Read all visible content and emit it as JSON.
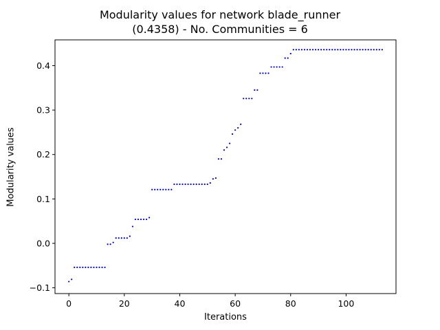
{
  "chart_data": {
    "type": "scatter",
    "title": "Modularity values for network blade_runner",
    "subtitle": "(0.4358) - No. Communities = 6",
    "xlabel": "Iterations",
    "ylabel": "Modularity values",
    "xlim": [
      -5,
      118
    ],
    "ylim": [
      -0.113,
      0.458
    ],
    "xticks": [
      0,
      20,
      40,
      60,
      80,
      100
    ],
    "yticks": [
      -0.1,
      0.0,
      0.1,
      0.2,
      0.3,
      0.4
    ],
    "ytick_labels": [
      "−0.1",
      "0.0",
      "0.1",
      "0.2",
      "0.3",
      "0.4"
    ],
    "grid": false,
    "marker_color": "#0000cc",
    "x": [
      0,
      1,
      2,
      3,
      4,
      5,
      6,
      7,
      8,
      9,
      10,
      11,
      12,
      13,
      14,
      15,
      16,
      17,
      18,
      19,
      20,
      21,
      22,
      23,
      24,
      25,
      26,
      27,
      28,
      29,
      30,
      31,
      32,
      33,
      34,
      35,
      36,
      37,
      38,
      39,
      40,
      41,
      42,
      43,
      44,
      45,
      46,
      47,
      48,
      49,
      50,
      51,
      52,
      53,
      54,
      55,
      56,
      57,
      58,
      59,
      60,
      61,
      62,
      63,
      64,
      65,
      66,
      67,
      68,
      69,
      70,
      71,
      72,
      73,
      74,
      75,
      76,
      77,
      78,
      79,
      80,
      81,
      82,
      83,
      84,
      85,
      86,
      87,
      88,
      89,
      90,
      91,
      92,
      93,
      94,
      95,
      96,
      97,
      98,
      99,
      100,
      101,
      102,
      103,
      104,
      105,
      106,
      107,
      108,
      109,
      110,
      111,
      112,
      113
    ],
    "y": [
      -0.086,
      -0.081,
      -0.054,
      -0.054,
      -0.054,
      -0.054,
      -0.054,
      -0.054,
      -0.054,
      -0.054,
      -0.054,
      -0.054,
      -0.054,
      -0.054,
      -0.002,
      -0.002,
      0.002,
      0.012,
      0.012,
      0.012,
      0.012,
      0.012,
      0.016,
      0.038,
      0.054,
      0.054,
      0.054,
      0.054,
      0.054,
      0.058,
      0.121,
      0.121,
      0.121,
      0.121,
      0.121,
      0.121,
      0.121,
      0.121,
      0.133,
      0.133,
      0.133,
      0.133,
      0.133,
      0.133,
      0.133,
      0.133,
      0.133,
      0.133,
      0.133,
      0.133,
      0.133,
      0.136,
      0.145,
      0.147,
      0.19,
      0.19,
      0.21,
      0.216,
      0.225,
      0.246,
      0.255,
      0.26,
      0.268,
      0.326,
      0.326,
      0.326,
      0.326,
      0.345,
      0.345,
      0.383,
      0.383,
      0.383,
      0.383,
      0.397,
      0.397,
      0.397,
      0.397,
      0.397,
      0.417,
      0.417,
      0.427,
      0.436,
      0.436,
      0.436,
      0.436,
      0.436,
      0.436,
      0.436,
      0.436,
      0.436,
      0.436,
      0.436,
      0.436,
      0.436,
      0.436,
      0.436,
      0.436,
      0.436,
      0.436,
      0.436,
      0.436,
      0.436,
      0.436,
      0.436,
      0.436,
      0.436,
      0.436,
      0.436,
      0.436,
      0.436,
      0.436,
      0.436,
      0.436,
      0.436
    ]
  }
}
